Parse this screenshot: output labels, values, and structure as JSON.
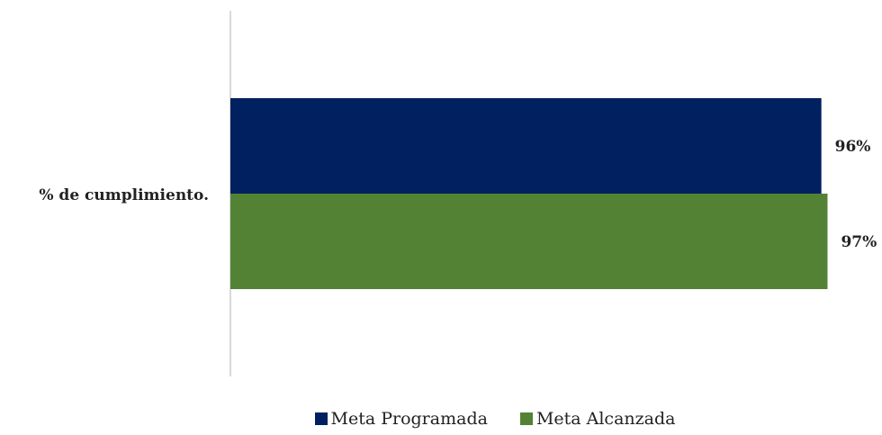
{
  "chart_data": {
    "type": "bar",
    "orientation": "horizontal",
    "categories": [
      "% de cumplimiento."
    ],
    "series": [
      {
        "name": "Meta Programada",
        "values": [
          96
        ],
        "label": "96%",
        "color": "#002060"
      },
      {
        "name": "Meta Alcanzada",
        "values": [
          97
        ],
        "label": "97%",
        "color": "#548235"
      }
    ],
    "xlim": [
      0,
      100
    ],
    "grid": false,
    "legend_position": "bottom",
    "axis_line_color": "#d9d9d9"
  }
}
